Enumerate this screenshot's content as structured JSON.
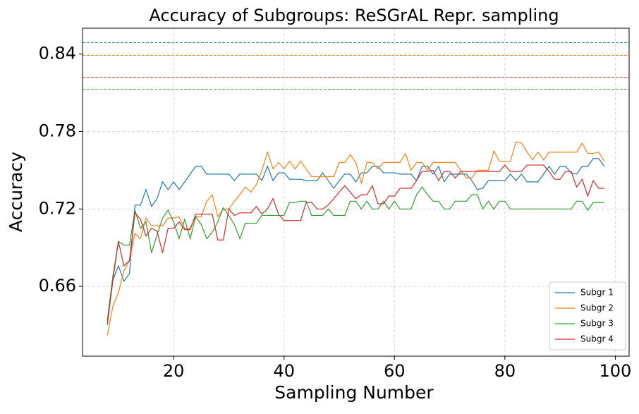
{
  "chart_data": {
    "type": "line",
    "title": "Accuracy of Subgroups: ReSGrAL Repr. sampling",
    "xlabel": "Sampling Number",
    "ylabel": "Accuracy",
    "xlim": [
      3.5,
      102.5
    ],
    "ylim": [
      0.606,
      0.86
    ],
    "xticks": [
      20,
      40,
      60,
      80,
      100
    ],
    "yticks": [
      0.66,
      0.72,
      0.78,
      0.84
    ],
    "grid": true,
    "legend": "lower right",
    "hlines": [
      {
        "value": 0.8488,
        "color": "#1f77b4"
      },
      {
        "value": 0.839,
        "color": "#ff7f0e"
      },
      {
        "value": 0.822,
        "color": "#d62728"
      },
      {
        "value": 0.8126,
        "color": "#2ca02c"
      }
    ],
    "x": [
      8,
      9,
      10,
      11,
      12,
      13,
      14,
      15,
      16,
      17,
      18,
      19,
      20,
      21,
      22,
      23,
      24,
      25,
      26,
      27,
      28,
      29,
      30,
      31,
      32,
      33,
      34,
      35,
      36,
      37,
      38,
      39,
      40,
      41,
      42,
      43,
      44,
      45,
      46,
      47,
      48,
      49,
      50,
      51,
      52,
      53,
      54,
      55,
      56,
      57,
      58,
      59,
      60,
      61,
      62,
      63,
      64,
      65,
      66,
      67,
      68,
      69,
      70,
      71,
      72,
      73,
      74,
      75,
      76,
      77,
      78,
      79,
      80,
      81,
      82,
      83,
      84,
      85,
      86,
      87,
      88,
      89,
      90,
      91,
      92,
      93,
      94,
      95,
      96,
      97,
      98
    ],
    "series": [
      {
        "name": "Subgr 1",
        "color": "#1f77b4",
        "values": [
          0.63,
          0.665,
          0.676,
          0.664,
          0.67,
          0.723,
          0.723,
          0.735,
          0.722,
          0.728,
          0.741,
          0.735,
          0.741,
          0.735,
          0.741,
          0.747,
          0.753,
          0.753,
          0.747,
          0.747,
          0.747,
          0.747,
          0.747,
          0.742,
          0.747,
          0.747,
          0.747,
          0.747,
          0.742,
          0.753,
          0.742,
          0.748,
          0.748,
          0.743,
          0.743,
          0.743,
          0.742,
          0.742,
          0.742,
          0.748,
          0.742,
          0.736,
          0.742,
          0.747,
          0.747,
          0.741,
          0.748,
          0.748,
          0.753,
          0.753,
          0.748,
          0.748,
          0.748,
          0.747,
          0.747,
          0.747,
          0.742,
          0.753,
          0.753,
          0.747,
          0.753,
          0.741,
          0.747,
          0.747,
          0.747,
          0.747,
          0.742,
          0.735,
          0.736,
          0.742,
          0.742,
          0.742,
          0.742,
          0.747,
          0.742,
          0.747,
          0.741,
          0.741,
          0.741,
          0.747,
          0.753,
          0.747,
          0.753,
          0.753,
          0.748,
          0.747,
          0.753,
          0.753,
          0.759,
          0.759,
          0.753
        ]
      },
      {
        "name": "Subgr 2",
        "color": "#ff7f0e",
        "values": [
          0.622,
          0.645,
          0.655,
          0.672,
          0.68,
          0.701,
          0.697,
          0.713,
          0.707,
          0.707,
          0.707,
          0.713,
          0.713,
          0.714,
          0.705,
          0.705,
          0.714,
          0.714,
          0.726,
          0.731,
          0.714,
          0.72,
          0.72,
          0.726,
          0.731,
          0.737,
          0.733,
          0.739,
          0.75,
          0.764,
          0.751,
          0.756,
          0.751,
          0.757,
          0.751,
          0.757,
          0.751,
          0.745,
          0.745,
          0.745,
          0.745,
          0.745,
          0.756,
          0.756,
          0.762,
          0.756,
          0.74,
          0.756,
          0.756,
          0.751,
          0.756,
          0.756,
          0.756,
          0.756,
          0.763,
          0.75,
          0.756,
          0.756,
          0.75,
          0.756,
          0.756,
          0.756,
          0.756,
          0.756,
          0.75,
          0.744,
          0.744,
          0.75,
          0.75,
          0.75,
          0.765,
          0.757,
          0.757,
          0.757,
          0.772,
          0.771,
          0.764,
          0.758,
          0.764,
          0.758,
          0.764,
          0.764,
          0.764,
          0.764,
          0.764,
          0.764,
          0.771,
          0.763,
          0.763,
          0.764,
          0.757
        ]
      },
      {
        "name": "Subgr 3",
        "color": "#2ca02c",
        "values": [
          0.634,
          0.668,
          0.695,
          0.692,
          0.692,
          0.719,
          0.705,
          0.71,
          0.686,
          0.7,
          0.713,
          0.719,
          0.71,
          0.697,
          0.712,
          0.697,
          0.714,
          0.708,
          0.697,
          0.702,
          0.71,
          0.721,
          0.715,
          0.708,
          0.697,
          0.709,
          0.709,
          0.709,
          0.715,
          0.715,
          0.715,
          0.715,
          0.715,
          0.725,
          0.725,
          0.726,
          0.726,
          0.715,
          0.715,
          0.715,
          0.72,
          0.715,
          0.715,
          0.715,
          0.726,
          0.726,
          0.72,
          0.726,
          0.72,
          0.72,
          0.726,
          0.72,
          0.726,
          0.72,
          0.72,
          0.72,
          0.731,
          0.737,
          0.731,
          0.726,
          0.726,
          0.72,
          0.72,
          0.726,
          0.726,
          0.726,
          0.731,
          0.731,
          0.72,
          0.726,
          0.72,
          0.726,
          0.726,
          0.72,
          0.72,
          0.72,
          0.72,
          0.72,
          0.72,
          0.72,
          0.72,
          0.72,
          0.72,
          0.72,
          0.72,
          0.726,
          0.726,
          0.719,
          0.725,
          0.725,
          0.725
        ]
      },
      {
        "name": "Subgr 4",
        "color": "#d62728",
        "values": [
          0.632,
          0.665,
          0.695,
          0.676,
          0.68,
          0.717,
          0.712,
          0.699,
          0.705,
          0.703,
          0.686,
          0.705,
          0.705,
          0.71,
          0.704,
          0.704,
          0.716,
          0.716,
          0.716,
          0.716,
          0.696,
          0.696,
          0.72,
          0.715,
          0.717,
          0.717,
          0.717,
          0.722,
          0.716,
          0.72,
          0.728,
          0.716,
          0.711,
          0.711,
          0.711,
          0.711,
          0.725,
          0.725,
          0.72,
          0.72,
          0.723,
          0.728,
          0.733,
          0.738,
          0.733,
          0.728,
          0.731,
          0.731,
          0.738,
          0.724,
          0.724,
          0.73,
          0.73,
          0.736,
          0.736,
          0.736,
          0.742,
          0.749,
          0.749,
          0.75,
          0.742,
          0.749,
          0.749,
          0.744,
          0.749,
          0.749,
          0.749,
          0.749,
          0.749,
          0.749,
          0.749,
          0.749,
          0.754,
          0.749,
          0.749,
          0.749,
          0.754,
          0.754,
          0.754,
          0.754,
          0.749,
          0.743,
          0.743,
          0.749,
          0.749,
          0.737,
          0.743,
          0.73,
          0.742,
          0.736,
          0.736
        ]
      }
    ]
  }
}
